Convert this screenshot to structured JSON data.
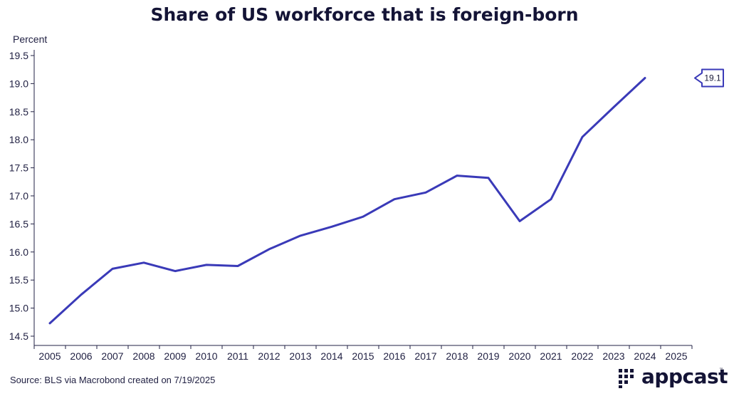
{
  "title": "Share of US workforce that is foreign-born",
  "source": "Source: BLS via Macrobond created on 7/19/2025",
  "logo": {
    "text": "appcast",
    "tm": "™"
  },
  "colors": {
    "line": "#3a3ab8",
    "text": "#141436",
    "axis": "#222244"
  },
  "chart_data": {
    "type": "line",
    "ylabel": "Percent",
    "ylim": [
      14.5,
      19.5
    ],
    "yticks": [
      "14.5",
      "15.0",
      "15.5",
      "16.0",
      "16.5",
      "17.0",
      "17.5",
      "18.0",
      "18.5",
      "19.0",
      "19.5"
    ],
    "xlim": [
      2005,
      2026
    ],
    "xticks": [
      "2005",
      "2006",
      "2007",
      "2008",
      "2009",
      "2010",
      "2011",
      "2012",
      "2013",
      "2014",
      "2015",
      "2016",
      "2017",
      "2018",
      "2019",
      "2020",
      "2021",
      "2022",
      "2023",
      "2024",
      "2025"
    ],
    "series": [
      {
        "x": [
          2005.5,
          2006.5,
          2007.5,
          2008.5,
          2009.5,
          2010.5,
          2011.5,
          2012.5,
          2013.5,
          2014.5,
          2015.5,
          2016.5,
          2017.5,
          2018.5,
          2019.5,
          2020.5,
          2021.5,
          2022.5,
          2023.5,
          2024.5
        ],
        "values": [
          14.73,
          15.24,
          15.7,
          15.81,
          15.66,
          15.77,
          15.75,
          16.05,
          16.29,
          16.45,
          16.63,
          16.94,
          17.06,
          17.36,
          17.32,
          16.55,
          16.94,
          18.05,
          18.58,
          19.1
        ]
      }
    ],
    "annotation": {
      "text": "19.1",
      "value": 19.1
    },
    "grid": false,
    "legend": "none"
  }
}
